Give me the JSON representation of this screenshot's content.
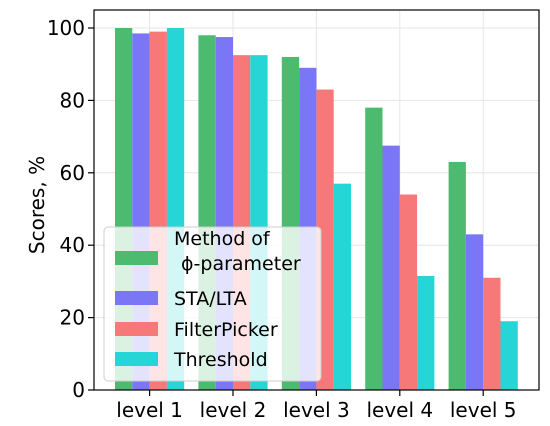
{
  "chart_data": {
    "type": "bar",
    "title": "",
    "xlabel": "",
    "ylabel": "Scores, %",
    "ylim": [
      0,
      100
    ],
    "yticks": [
      0,
      20,
      40,
      60,
      80,
      100
    ],
    "grid": true,
    "legend_position": "lower-left",
    "categories": [
      "level 1",
      "level 2",
      "level 3",
      "level 4",
      "level 5"
    ],
    "series": [
      {
        "name": "Method of ϕ-parameter",
        "legend_lines": [
          "Method of",
          "ϕ-parameter"
        ],
        "color": "#4dbb6f",
        "values": [
          100,
          98,
          92,
          78,
          63
        ]
      },
      {
        "name": "STA/LTA",
        "legend_lines": [
          "STA/LTA"
        ],
        "color": "#7b76f5",
        "values": [
          98.5,
          97.5,
          89,
          67.5,
          43
        ]
      },
      {
        "name": "FilterPicker",
        "legend_lines": [
          "FilterPicker"
        ],
        "color": "#f77878",
        "values": [
          99,
          92.5,
          83,
          54,
          31
        ]
      },
      {
        "name": "Threshold",
        "legend_lines": [
          "Threshold"
        ],
        "color": "#26d6d6",
        "values": [
          100,
          92.5,
          57,
          31.5,
          19
        ]
      }
    ]
  }
}
